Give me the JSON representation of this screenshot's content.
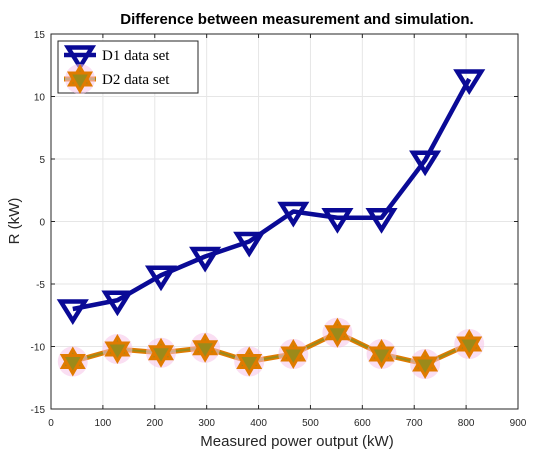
{
  "chart_data": {
    "type": "line",
    "title": "Difference between measurement and simulation.",
    "xlabel": "Measured power output (kW)",
    "ylabel": "R (kW)",
    "xlim": [
      0,
      900
    ],
    "ylim": [
      -15,
      15
    ],
    "xticks": [
      0,
      100,
      200,
      300,
      400,
      500,
      600,
      700,
      800,
      900
    ],
    "yticks": [
      -15,
      -10,
      -5,
      0,
      5,
      10,
      15
    ],
    "grid": true,
    "legend_position": "top-left",
    "series": [
      {
        "name": "D1 data set",
        "color": "#0a0a96",
        "marker": "triangle-down-open",
        "x": [
          42,
          128,
          212,
          297,
          382,
          467,
          552,
          637,
          721,
          806
        ],
        "y": [
          -7.0,
          -6.3,
          -4.3,
          -2.8,
          -1.6,
          0.8,
          0.3,
          0.3,
          4.9,
          11.4
        ]
      },
      {
        "name": "D2 data set",
        "color": "#e07b00",
        "marker": "hexagram",
        "x": [
          42,
          128,
          212,
          297,
          382,
          467,
          552,
          637,
          721,
          806
        ],
        "y": [
          -11.2,
          -10.2,
          -10.5,
          -10.1,
          -11.2,
          -10.6,
          -8.9,
          -10.6,
          -11.4,
          -9.8
        ]
      }
    ]
  }
}
